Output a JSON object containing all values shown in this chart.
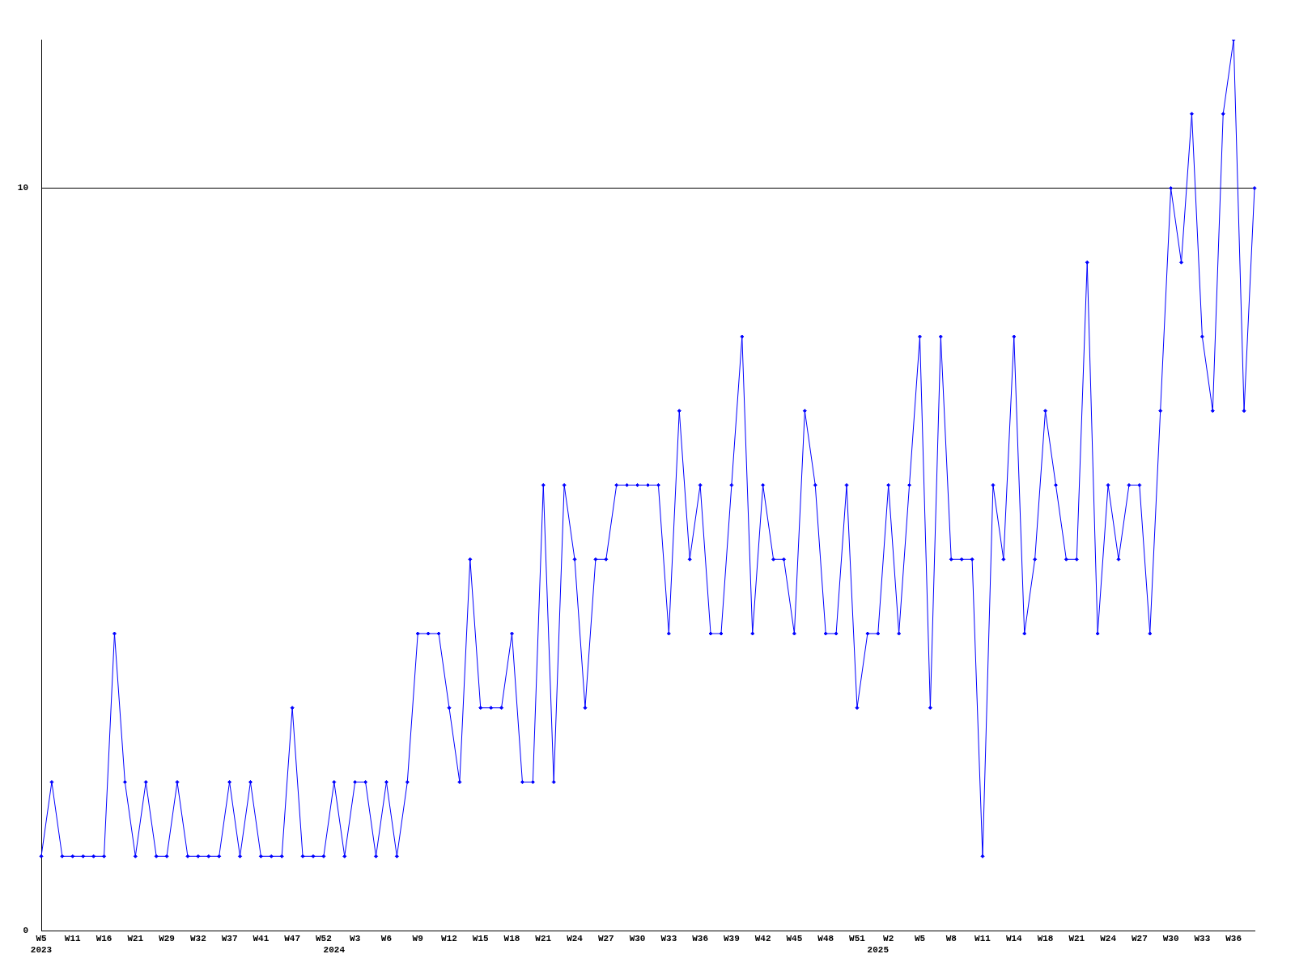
{
  "chart_data": {
    "type": "line",
    "categories": [
      "W5\n2023",
      null,
      null,
      "W11",
      null,
      null,
      "W16",
      null,
      null,
      "W21",
      null,
      null,
      "W29",
      null,
      null,
      "W32",
      null,
      null,
      "W37",
      null,
      null,
      "W41",
      null,
      null,
      "W47",
      null,
      null,
      "W52",
      "\n2024",
      null,
      "W3",
      null,
      null,
      "W6",
      null,
      null,
      "W9",
      null,
      null,
      "W12",
      null,
      null,
      "W15",
      null,
      null,
      "W18",
      null,
      null,
      "W21",
      null,
      null,
      "W24",
      null,
      null,
      "W27",
      null,
      null,
      "W30",
      null,
      null,
      "W33",
      null,
      null,
      "W36",
      null,
      null,
      "W39",
      null,
      null,
      "W42",
      null,
      null,
      "W45",
      null,
      null,
      "W48",
      null,
      null,
      "W51",
      null,
      "\n2025",
      "W2",
      null,
      null,
      "W5",
      null,
      null,
      "W8",
      null,
      null,
      "W11",
      null,
      null,
      "W14",
      null,
      null,
      "W18",
      null,
      null,
      "W21",
      null,
      null,
      "W24",
      null,
      null,
      "W27",
      null,
      null,
      "W30",
      null,
      null,
      "W33",
      null,
      null,
      "W36",
      null,
      null
    ],
    "series": [
      {
        "color": "#0000ff",
        "values": [
          1,
          2,
          1,
          1,
          1,
          1,
          1,
          4,
          2,
          1,
          2,
          1,
          1,
          2,
          1,
          1,
          1,
          1,
          2,
          1,
          2,
          1,
          1,
          1,
          3,
          1,
          1,
          1,
          2,
          1,
          2,
          2,
          1,
          2,
          1,
          2,
          4,
          4,
          4,
          3,
          2,
          5,
          3,
          3,
          3,
          4,
          2,
          2,
          6,
          2,
          6,
          5,
          3,
          5,
          5,
          6,
          6,
          6,
          6,
          6,
          4,
          7,
          5,
          6,
          4,
          4,
          6,
          8,
          4,
          6,
          5,
          5,
          4,
          7,
          6,
          4,
          4,
          6,
          3,
          4,
          4,
          6,
          4,
          6,
          8,
          3,
          8,
          5,
          5,
          5,
          1,
          6,
          5,
          8,
          4,
          5,
          7,
          6,
          5,
          5,
          9,
          4,
          6,
          5,
          6,
          6,
          4,
          7,
          10,
          9,
          11,
          8,
          7,
          11,
          12,
          7,
          10
        ]
      }
    ],
    "ylim": [
      0,
      12
    ],
    "yticks": [
      0,
      10
    ],
    "grid": "y",
    "legend": false,
    "marker": "diamond",
    "line_style": "solid"
  }
}
